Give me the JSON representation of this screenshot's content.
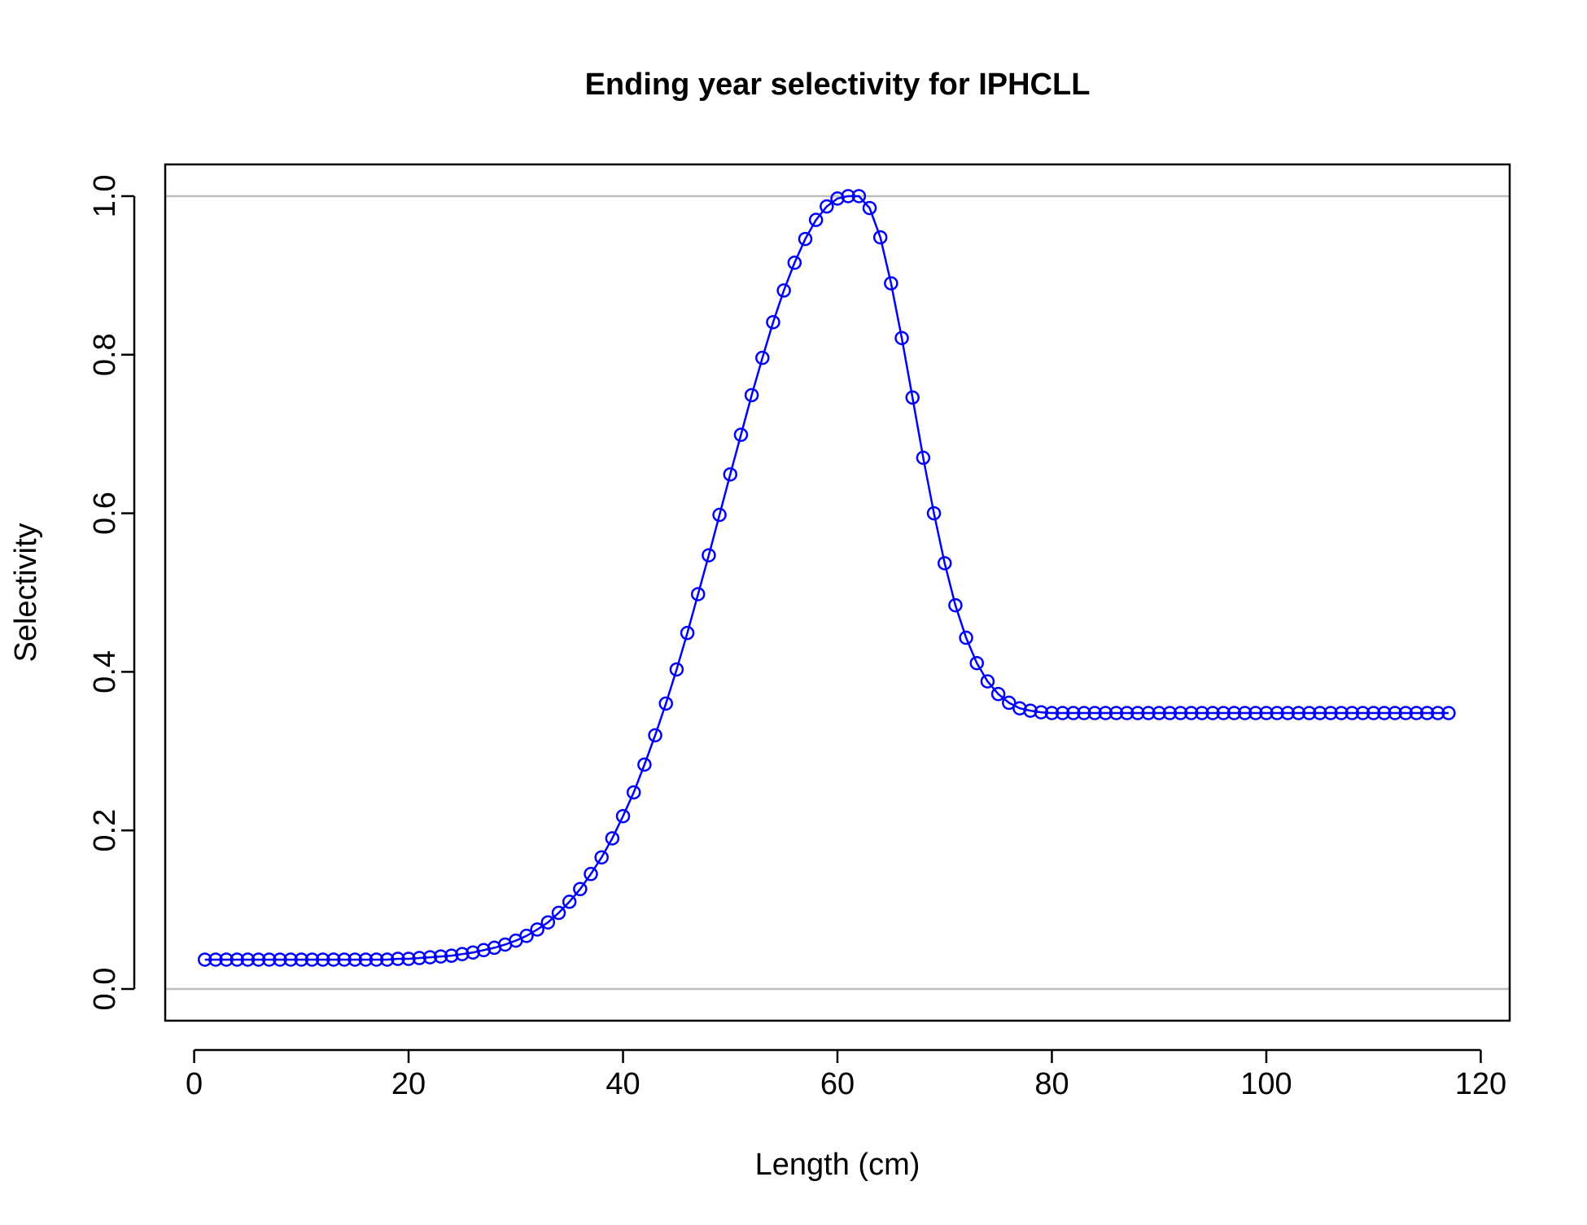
{
  "chart_data": {
    "type": "line",
    "title": "Ending year selectivity for IPHCLL",
    "xlabel": "Length (cm)",
    "ylabel": "Selectivity",
    "xlim": [
      -2.7,
      122.7
    ],
    "ylim": [
      -0.04,
      1.04
    ],
    "x_ticks": [
      0,
      20,
      40,
      60,
      80,
      100,
      120
    ],
    "y_ticks": [
      0.0,
      0.2,
      0.4,
      0.6,
      0.8,
      1.0
    ],
    "x_tick_labels": [
      "0",
      "20",
      "40",
      "60",
      "80",
      "100",
      "120"
    ],
    "y_tick_labels": [
      "0.0",
      "0.2",
      "0.4",
      "0.6",
      "0.8",
      "1.0"
    ],
    "reference_lines_y": [
      0,
      1
    ],
    "grid": false,
    "colors": {
      "series": "#0000ff",
      "reference": "#bebebe",
      "axis": "#000000"
    },
    "series": [
      {
        "marker": "open-circle",
        "x": [
          1,
          2,
          3,
          4,
          5,
          6,
          7,
          8,
          9,
          10,
          11,
          12,
          13,
          14,
          15,
          16,
          17,
          18,
          19,
          20,
          21,
          22,
          23,
          24,
          25,
          26,
          27,
          28,
          29,
          30,
          31,
          32,
          33,
          34,
          35,
          36,
          37,
          38,
          39,
          40,
          41,
          42,
          43,
          44,
          45,
          46,
          47,
          48,
          49,
          50,
          51,
          52,
          53,
          54,
          55,
          56,
          57,
          58,
          59,
          60,
          61,
          62,
          63,
          64,
          65,
          66,
          67,
          68,
          69,
          70,
          71,
          72,
          73,
          74,
          75,
          76,
          77,
          78,
          79,
          80,
          81,
          82,
          83,
          84,
          85,
          86,
          87,
          88,
          89,
          90,
          91,
          92,
          93,
          94,
          95,
          96,
          97,
          98,
          99,
          100,
          101,
          102,
          103,
          104,
          105,
          106,
          107,
          108,
          109,
          110,
          111,
          112,
          113,
          114,
          115,
          116,
          117
        ],
        "y": [
          0.037,
          0.037,
          0.037,
          0.037,
          0.037,
          0.037,
          0.037,
          0.037,
          0.037,
          0.037,
          0.037,
          0.037,
          0.037,
          0.037,
          0.037,
          0.037,
          0.037,
          0.037,
          0.038,
          0.038,
          0.039,
          0.04,
          0.041,
          0.042,
          0.044,
          0.046,
          0.049,
          0.052,
          0.056,
          0.061,
          0.067,
          0.075,
          0.084,
          0.096,
          0.11,
          0.126,
          0.145,
          0.166,
          0.19,
          0.218,
          0.248,
          0.283,
          0.32,
          0.36,
          0.403,
          0.449,
          0.498,
          0.547,
          0.598,
          0.649,
          0.699,
          0.749,
          0.796,
          0.841,
          0.881,
          0.916,
          0.946,
          0.97,
          0.987,
          0.997,
          1.0,
          1.0,
          0.985,
          0.948,
          0.89,
          0.821,
          0.746,
          0.67,
          0.6,
          0.537,
          0.484,
          0.443,
          0.411,
          0.388,
          0.372,
          0.361,
          0.354,
          0.351,
          0.349,
          0.348,
          0.348,
          0.348,
          0.348,
          0.348,
          0.348,
          0.348,
          0.348,
          0.348,
          0.348,
          0.348,
          0.348,
          0.348,
          0.348,
          0.348,
          0.348,
          0.348,
          0.348,
          0.348,
          0.348,
          0.348,
          0.348,
          0.348,
          0.348,
          0.348,
          0.348,
          0.348,
          0.348,
          0.348,
          0.348,
          0.348,
          0.348,
          0.348,
          0.348,
          0.348,
          0.348,
          0.348,
          0.348
        ]
      }
    ]
  }
}
